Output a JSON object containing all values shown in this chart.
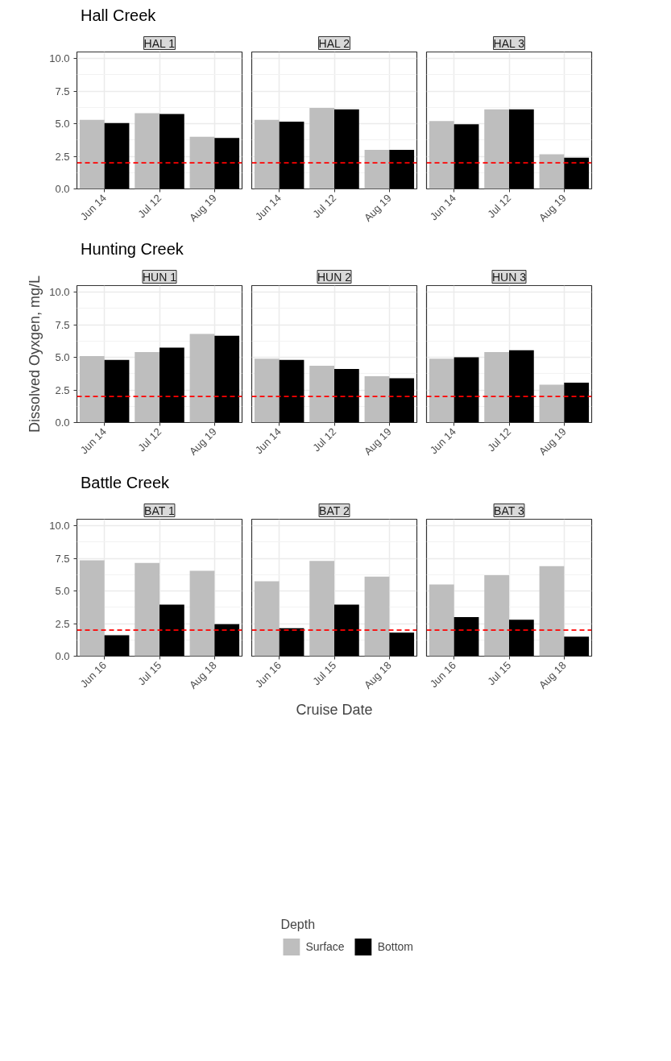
{
  "chart_data": [
    {
      "type": "bar",
      "title": "HAL 1",
      "annotations": [
        "Hall Creek"
      ],
      "categories": [
        "Jun 14",
        "Jul 12",
        "Aug 19"
      ],
      "ylim": [
        0,
        10.5
      ],
      "yticks": [
        {
          "value": 0,
          "label": "0.0"
        },
        2.5,
        {
          "value": 5,
          "label": "5.0"
        },
        7.5,
        {
          "value": 10,
          "label": "10.0"
        }
      ],
      "grid": true,
      "ref_lines": [
        {
          "axis": "y",
          "value": 2,
          "color": "#ff0000",
          "line_style": "dashed"
        }
      ],
      "series": [
        {
          "color": "#bebebe",
          "values": [
            5.3,
            5.8,
            4.0
          ]
        },
        {
          "color": "#000000",
          "values": [
            5.05,
            5.75,
            3.9
          ]
        }
      ]
    },
    {
      "type": "bar",
      "title": "HAL 2",
      "categories": [
        "Jun 14",
        "Jul 12",
        "Aug 19"
      ],
      "ylim": [
        0,
        10.5
      ],
      "yticks": [
        0,
        2.5,
        5,
        7.5,
        10
      ],
      "tick_labels": "x",
      "grid": true,
      "ref_lines": [
        {
          "axis": "y",
          "value": 2,
          "color": "#ff0000",
          "line_style": "dashed"
        }
      ],
      "series": [
        {
          "color": "#bebebe",
          "values": [
            5.3,
            6.2,
            3.0
          ]
        },
        {
          "color": "#000000",
          "values": [
            5.15,
            6.1,
            3.0
          ]
        }
      ]
    },
    {
      "type": "bar",
      "title": "HAL 3",
      "categories": [
        "Jun 14",
        "Jul 12",
        "Aug 19"
      ],
      "ylim": [
        0,
        10.5
      ],
      "yticks": [
        0,
        2.5,
        5,
        7.5,
        10
      ],
      "tick_labels": "x",
      "grid": true,
      "ref_lines": [
        {
          "axis": "y",
          "value": 2,
          "color": "#ff0000",
          "line_style": "dashed"
        }
      ],
      "series": [
        {
          "color": "#bebebe",
          "values": [
            5.2,
            6.1,
            2.65
          ]
        },
        {
          "color": "#000000",
          "values": [
            4.95,
            6.1,
            2.4
          ]
        }
      ]
    },
    {
      "type": "bar",
      "title": "HUN 1",
      "annotations": [
        "Hunting Creek"
      ],
      "ylabel": "Dissolved Oyxgen, mg/L",
      "categories": [
        "Jun 14",
        "Jul 12",
        "Aug 19"
      ],
      "ylim": [
        0,
        10.5
      ],
      "yticks": [
        {
          "value": 0,
          "label": "0.0"
        },
        2.5,
        {
          "value": 5,
          "label": "5.0"
        },
        7.5,
        {
          "value": 10,
          "label": "10.0"
        }
      ],
      "grid": true,
      "ref_lines": [
        {
          "axis": "y",
          "value": 2,
          "color": "#ff0000",
          "line_style": "dashed"
        }
      ],
      "series": [
        {
          "color": "#bebebe",
          "values": [
            5.1,
            5.4,
            6.8
          ]
        },
        {
          "color": "#000000",
          "values": [
            4.8,
            5.75,
            6.65
          ]
        }
      ]
    },
    {
      "type": "bar",
      "title": "HUN 2",
      "categories": [
        "Jun 14",
        "Jul 12",
        "Aug 19"
      ],
      "ylim": [
        0,
        10.5
      ],
      "yticks": [
        0,
        2.5,
        5,
        7.5,
        10
      ],
      "tick_labels": "x",
      "grid": true,
      "ref_lines": [
        {
          "axis": "y",
          "value": 2,
          "color": "#ff0000",
          "line_style": "dashed"
        }
      ],
      "series": [
        {
          "color": "#bebebe",
          "values": [
            4.9,
            4.35,
            3.55
          ]
        },
        {
          "color": "#000000",
          "values": [
            4.8,
            4.1,
            3.4
          ]
        }
      ]
    },
    {
      "type": "bar",
      "title": "HUN 3",
      "categories": [
        "Jun 14",
        "Jul 12",
        "Aug 19"
      ],
      "ylim": [
        0,
        10.5
      ],
      "yticks": [
        0,
        2.5,
        5,
        7.5,
        10
      ],
      "tick_labels": "x",
      "grid": true,
      "ref_lines": [
        {
          "axis": "y",
          "value": 2,
          "color": "#ff0000",
          "line_style": "dashed"
        }
      ],
      "series": [
        {
          "color": "#bebebe",
          "values": [
            4.9,
            5.4,
            2.9
          ]
        },
        {
          "color": "#000000",
          "values": [
            5.0,
            5.55,
            3.05
          ]
        }
      ]
    },
    {
      "type": "bar",
      "title": "BAT 1",
      "annotations": [
        "Battle Creek"
      ],
      "categories": [
        "Jun 16",
        "Jul 15",
        "Aug 18"
      ],
      "ylim": [
        0,
        10.5
      ],
      "yticks": [
        {
          "value": 0,
          "label": "0.0"
        },
        2.5,
        {
          "value": 5,
          "label": "5.0"
        },
        7.5,
        {
          "value": 10,
          "label": "10.0"
        }
      ],
      "grid": true,
      "ref_lines": [
        {
          "axis": "y",
          "value": 2,
          "color": "#ff0000",
          "line_style": "dashed"
        }
      ],
      "series": [
        {
          "color": "#bebebe",
          "values": [
            7.35,
            7.15,
            6.55
          ]
        },
        {
          "color": "#000000",
          "values": [
            1.6,
            3.95,
            2.45
          ]
        }
      ]
    },
    {
      "type": "bar",
      "title": "BAT 2",
      "xlabel": "Cruise Date",
      "legend_title": "Depth",
      "legend": "bottom",
      "categories": [
        "Jun 16",
        "Jul 15",
        "Aug 18"
      ],
      "ylim": [
        0,
        10.5
      ],
      "yticks": [
        0,
        2.5,
        5,
        7.5,
        10
      ],
      "tick_labels": "x",
      "grid": true,
      "ref_lines": [
        {
          "axis": "y",
          "value": 2,
          "color": "#ff0000",
          "line_style": "dashed"
        }
      ],
      "series": [
        {
          "name": "Surface",
          "color": "#bebebe",
          "values": [
            5.75,
            7.3,
            6.1
          ]
        },
        {
          "name": "Bottom",
          "color": "#000000",
          "values": [
            2.15,
            3.95,
            1.8
          ]
        }
      ]
    },
    {
      "type": "bar",
      "title": "BAT 3",
      "categories": [
        "Jun 16",
        "Jul 15",
        "Aug 18"
      ],
      "ylim": [
        0,
        10.5
      ],
      "yticks": [
        0,
        2.5,
        5,
        7.5,
        10
      ],
      "tick_labels": "x",
      "grid": true,
      "ref_lines": [
        {
          "axis": "y",
          "value": 2,
          "color": "#ff0000",
          "line_style": "dashed"
        }
      ],
      "series": [
        {
          "color": "#bebebe",
          "values": [
            5.5,
            6.2,
            6.9
          ]
        },
        {
          "color": "#000000",
          "values": [
            3.0,
            2.8,
            1.5
          ]
        }
      ]
    }
  ]
}
